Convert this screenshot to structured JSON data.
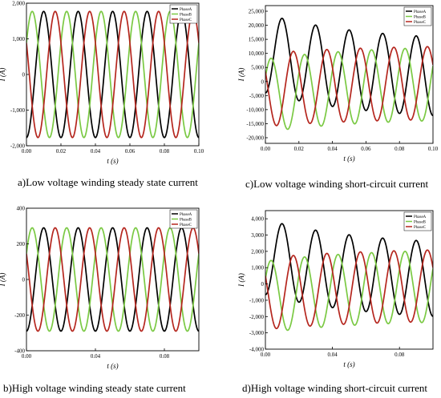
{
  "colors": {
    "PhaseA": "#000000",
    "PhaseB": "#7ac943",
    "PhaseC": "#b5261e"
  },
  "chart_data": [
    {
      "id": "a",
      "type": "line",
      "caption": "a)Low voltage winding steady state current",
      "xlabel": "t (s)",
      "ylabel": "I (A)",
      "xlim": [
        0,
        0.1
      ],
      "ylim": [
        -2000,
        2000
      ],
      "xticks": [
        0.0,
        0.02,
        0.04,
        0.06,
        0.08,
        0.1
      ],
      "xtick_labels": [
        "0.00",
        "0.02",
        "0.04",
        "0.06",
        "0.08",
        "0.10"
      ],
      "yticks": [
        -2000,
        -1000,
        0,
        1000,
        2000
      ],
      "ytick_labels": [
        "-2,000",
        "-1,000",
        "0",
        "1,000",
        "2,000"
      ],
      "grid": false,
      "legend_position": "top-right",
      "frequency_hz": 50,
      "series": [
        {
          "name": "PhaseA",
          "amplitude": 1770,
          "phase_deg": -90
        },
        {
          "name": "PhaseB",
          "amplitude": 1770,
          "phase_deg": 30
        },
        {
          "name": "PhaseC",
          "amplitude": 1770,
          "phase_deg": 150
        }
      ]
    },
    {
      "id": "c",
      "type": "line",
      "caption": "c)Low voltage winding short-circuit current",
      "xlabel": "t (s)",
      "ylabel": "I (A)",
      "xlim": [
        0,
        0.1
      ],
      "ylim": [
        -22000,
        27000
      ],
      "xticks": [
        0.0,
        0.02,
        0.04,
        0.06,
        0.08,
        0.1
      ],
      "xtick_labels": [
        "0.00",
        "0.02",
        "0.04",
        "0.06",
        "0.08",
        "0.10"
      ],
      "yticks": [
        -20000,
        -15000,
        -10000,
        -5000,
        0,
        5000,
        10000,
        15000,
        20000,
        25000
      ],
      "ytick_labels": [
        "-20,000",
        "-15,000",
        "-10,000",
        "-5,000",
        "0",
        "5,000",
        "10,000",
        "15,000",
        "20,000",
        "25,000"
      ],
      "grid": false,
      "legend_position": "top-right",
      "frequency_hz": 50,
      "series": [
        {
          "name": "PhaseA",
          "amplitude": 14000,
          "phase_deg": -90,
          "dc_offset": 10000,
          "dc_tau_s": 0.06
        },
        {
          "name": "PhaseB",
          "amplitude": 13000,
          "phase_deg": 30,
          "dc_offset": -5000,
          "dc_tau_s": 0.06
        },
        {
          "name": "PhaseC",
          "amplitude": 13000,
          "phase_deg": 150,
          "dc_offset": -3000,
          "dc_tau_s": 0.06
        }
      ]
    },
    {
      "id": "b",
      "type": "line",
      "caption": "b)High voltage winding steady state current",
      "xlabel": "t (s)",
      "ylabel": "I (A)",
      "xlim": [
        0,
        0.1
      ],
      "ylim": [
        -400,
        400
      ],
      "xticks": [
        0.0,
        0.04,
        0.08
      ],
      "xtick_labels": [
        "0.00",
        "0.04",
        "0.08"
      ],
      "yticks": [
        -400,
        -200,
        0,
        200,
        400
      ],
      "ytick_labels": [
        "-400",
        "-200",
        "0",
        "200",
        "400"
      ],
      "grid": false,
      "legend_position": "top-right",
      "frequency_hz": 50,
      "series": [
        {
          "name": "PhaseA",
          "amplitude": 290,
          "phase_deg": -90
        },
        {
          "name": "PhaseB",
          "amplitude": 290,
          "phase_deg": 30
        },
        {
          "name": "PhaseC",
          "amplitude": 290,
          "phase_deg": 150
        }
      ]
    },
    {
      "id": "d",
      "type": "line",
      "caption": "d)High voltage winding short-circuit current",
      "xlabel": "t (s)",
      "ylabel": "I (A)",
      "xlim": [
        0,
        0.1
      ],
      "ylim": [
        -4000,
        4500
      ],
      "xticks": [
        0.0,
        0.04,
        0.08
      ],
      "xtick_labels": [
        "0.00",
        "0.04",
        "0.08"
      ],
      "yticks": [
        -4000,
        -3000,
        -2000,
        -1000,
        0,
        1000,
        2000,
        3000,
        4000
      ],
      "ytick_labels": [
        "-4,000",
        "-3,000",
        "-2,000",
        "-1,000",
        "0",
        "1,000",
        "2,000",
        "3,000",
        "4,000"
      ],
      "grid": false,
      "legend_position": "top-right",
      "frequency_hz": 50,
      "series": [
        {
          "name": "PhaseA",
          "amplitude": 2300,
          "phase_deg": -90,
          "dc_offset": 1650,
          "dc_tau_s": 0.06
        },
        {
          "name": "PhaseB",
          "amplitude": 2200,
          "phase_deg": 30,
          "dc_offset": -800,
          "dc_tau_s": 0.06
        },
        {
          "name": "PhaseC",
          "amplitude": 2200,
          "phase_deg": 150,
          "dc_offset": -600,
          "dc_tau_s": 0.06
        }
      ]
    }
  ]
}
